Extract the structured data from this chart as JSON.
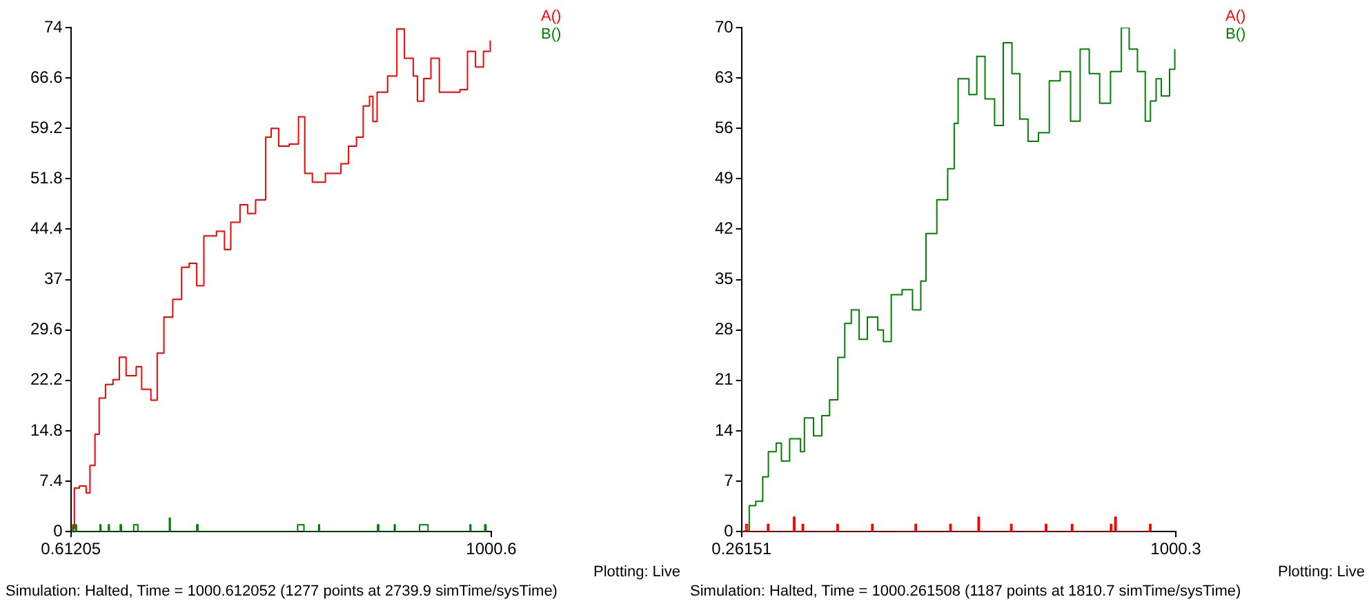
{
  "chart_data": [
    {
      "type": "step",
      "xlim": [
        0.61205,
        1000.6
      ],
      "xticks": [
        0.61205,
        1000.6
      ],
      "ylim": [
        0,
        74
      ],
      "yticks": [
        0,
        7.4,
        14.8,
        22.2,
        29.6,
        37,
        44.4,
        51.8,
        59.2,
        66.6,
        74
      ],
      "grid": false,
      "legend": "top right",
      "marker": "none",
      "line_style": "solid",
      "annotations": [
        "Simulation: Halted, Time = 1000.612052 (1277 points at 2739.9 simTime/sysTime)",
        "Plotting: Live"
      ],
      "series": [
        {
          "name": "A()",
          "color": "#ff0000",
          "x": [
            0.61205,
            9,
            21,
            37,
            46,
            58,
            68,
            83,
            101,
            116,
            132,
            156,
            169,
            191,
            206,
            222,
            243,
            264,
            282,
            300,
            317,
            347,
            366,
            381,
            403,
            421,
            440,
            464,
            477,
            495,
            520,
            542,
            557,
            575,
            606,
            643,
            661,
            680,
            696,
            711,
            719,
            729,
            754,
            776,
            794,
            815,
            825,
            840,
            857,
            877,
            926,
            944,
            963,
            982,
            998
          ],
          "values": [
            0.5,
            6.4,
            6.7,
            5.7,
            9.7,
            14.3,
            19.6,
            21.6,
            22.3,
            25.6,
            22.9,
            24.2,
            20.9,
            19.3,
            26.2,
            31.5,
            34.1,
            38.8,
            39.4,
            36.1,
            43.4,
            44.1,
            41.4,
            45.4,
            48,
            46.7,
            48.7,
            57.9,
            59.2,
            56.6,
            56.9,
            60.9,
            52.6,
            51.3,
            52.6,
            54,
            56.6,
            57.9,
            62.5,
            63.9,
            60.2,
            64.5,
            66.9,
            73.8,
            69.5,
            66.9,
            63.2,
            66.5,
            69.5,
            64.5,
            64.9,
            70.5,
            68.2,
            70.5,
            72.1
          ]
        },
        {
          "name": "B()",
          "color": "#008000",
          "x": [
            0.61205,
            5,
            7,
            12,
            14,
            70,
            72,
            90,
            92,
            118,
            121,
            150,
            160,
            235,
            237,
            300,
            303,
            540,
            555,
            590,
            592,
            730,
            733,
            770,
            772,
            830,
            850,
            950,
            952,
            985,
            988
          ],
          "values": [
            0,
            1,
            0,
            1,
            0,
            1,
            0,
            1,
            0,
            1,
            0,
            1,
            0,
            2,
            0,
            1,
            0,
            1,
            0,
            1,
            0,
            1,
            0,
            1,
            0,
            1,
            0,
            1,
            0,
            1,
            0
          ]
        }
      ]
    },
    {
      "type": "step",
      "xlim": [
        0.26151,
        1000.3
      ],
      "xticks": [
        0.26151,
        1000.3
      ],
      "ylim": [
        0,
        70
      ],
      "yticks": [
        0,
        7,
        14,
        21,
        28,
        35,
        42,
        49,
        56,
        63,
        70
      ],
      "grid": false,
      "legend": "top right",
      "marker": "none",
      "line_style": "solid",
      "annotations": [
        "Simulation: Halted, Time = 1000.261508 (1187 points at 1810.7 simTime/sysTime)",
        "Plotting: Live"
      ],
      "series": [
        {
          "name": "A()",
          "color": "#ff0000",
          "x": [
            0.26151,
            10,
            14,
            60,
            63,
            120,
            123,
            140,
            143,
            220,
            223,
            300,
            303,
            400,
            403,
            480,
            483,
            545,
            548,
            620,
            623,
            700,
            703,
            760,
            763,
            850,
            853,
            860,
            863,
            940,
            943
          ],
          "values": [
            0,
            1,
            0,
            1,
            0,
            2,
            0,
            1,
            0,
            1,
            0,
            1,
            0,
            1,
            0,
            1,
            0,
            2,
            0,
            1,
            0,
            1,
            0,
            1,
            0,
            1,
            0,
            2,
            0,
            1,
            0
          ]
        },
        {
          "name": "B()",
          "color": "#008000",
          "x": [
            0.26151,
            6,
            18,
            33,
            49,
            62,
            80,
            92,
            111,
            136,
            145,
            166,
            185,
            203,
            222,
            238,
            253,
            271,
            290,
            314,
            327,
            345,
            370,
            394,
            413,
            425,
            450,
            475,
            490,
            499,
            524,
            542,
            561,
            583,
            603,
            623,
            641,
            660,
            684,
            709,
            734,
            758,
            780,
            801,
            825,
            850,
            875,
            893,
            912,
            930,
            942,
            955,
            967,
            986,
            998
          ],
          "values": [
            0,
            0.1,
            3.6,
            4.2,
            7.6,
            11.1,
            12.3,
            9.8,
            12.9,
            11.1,
            15.8,
            13.3,
            16.1,
            18.3,
            24.2,
            28.9,
            30.8,
            26.7,
            29.8,
            28,
            26.4,
            32.9,
            33.6,
            30.8,
            34.8,
            41.4,
            46.1,
            50.4,
            56.7,
            62.9,
            60.7,
            66,
            60.1,
            56.4,
            67.9,
            63.6,
            57.3,
            54.2,
            55.4,
            62.6,
            63.9,
            57,
            67,
            63.6,
            59.5,
            63.9,
            70,
            67,
            63.9,
            57,
            59.8,
            62.9,
            60.5,
            64.2,
            67
          ]
        }
      ]
    }
  ]
}
